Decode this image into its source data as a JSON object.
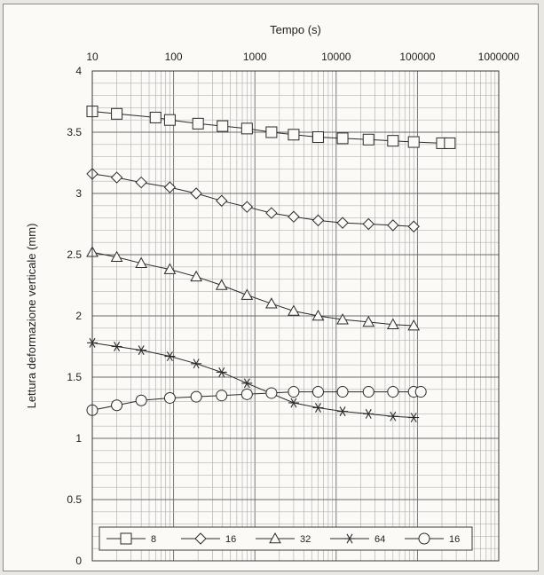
{
  "chart_data": {
    "type": "line",
    "title": "",
    "xlabel": "Tempo (s)",
    "ylabel": "Lettura deformazione verticale (mm)",
    "x_scale": "log",
    "xlim": [
      10,
      1000000
    ],
    "ylim": [
      0,
      4
    ],
    "x_tick_labels": [
      "10",
      "100",
      "1000",
      "10000",
      "100000",
      "1000000"
    ],
    "y_tick_labels": [
      "0",
      "0.5",
      "1",
      "1.5",
      "2",
      "2.5",
      "3",
      "3.5",
      "4"
    ],
    "grid": true,
    "legend_position": "bottom",
    "series": [
      {
        "name": "8",
        "marker": "square",
        "x": [
          10,
          20,
          60,
          90,
          200,
          400,
          800,
          1600,
          3000,
          6000,
          12000,
          25000,
          50000,
          90000,
          200000,
          250000
        ],
        "y": [
          3.67,
          3.65,
          3.62,
          3.6,
          3.57,
          3.55,
          3.53,
          3.5,
          3.48,
          3.46,
          3.45,
          3.44,
          3.43,
          3.42,
          3.41,
          3.41
        ]
      },
      {
        "name": "16",
        "marker": "diamond",
        "x": [
          10,
          20,
          40,
          90,
          190,
          390,
          800,
          1600,
          3000,
          6000,
          12000,
          25000,
          50000,
          90000
        ],
        "y": [
          3.16,
          3.13,
          3.09,
          3.05,
          3.0,
          2.94,
          2.89,
          2.84,
          2.81,
          2.78,
          2.76,
          2.75,
          2.74,
          2.73
        ]
      },
      {
        "name": "32",
        "marker": "triangle",
        "x": [
          10,
          20,
          40,
          90,
          190,
          390,
          800,
          1600,
          3000,
          6000,
          12000,
          25000,
          50000,
          90000
        ],
        "y": [
          2.52,
          2.48,
          2.43,
          2.38,
          2.32,
          2.25,
          2.17,
          2.1,
          2.04,
          2.0,
          1.97,
          1.95,
          1.93,
          1.92
        ]
      },
      {
        "name": "64",
        "marker": "asterisk",
        "x": [
          10,
          20,
          40,
          90,
          190,
          390,
          800,
          3000,
          6000,
          12000,
          25000,
          50000,
          90000
        ],
        "y": [
          1.78,
          1.75,
          1.72,
          1.67,
          1.61,
          1.54,
          1.45,
          1.29,
          1.25,
          1.22,
          1.2,
          1.18,
          1.17
        ]
      },
      {
        "name": "16",
        "marker": "circle",
        "x": [
          10,
          20,
          40,
          90,
          190,
          390,
          800,
          1600,
          3000,
          6000,
          12000,
          25000,
          50000,
          90000,
          110000
        ],
        "y": [
          1.23,
          1.27,
          1.31,
          1.33,
          1.34,
          1.35,
          1.36,
          1.37,
          1.38,
          1.38,
          1.38,
          1.38,
          1.38,
          1.38,
          1.38
        ]
      }
    ]
  }
}
